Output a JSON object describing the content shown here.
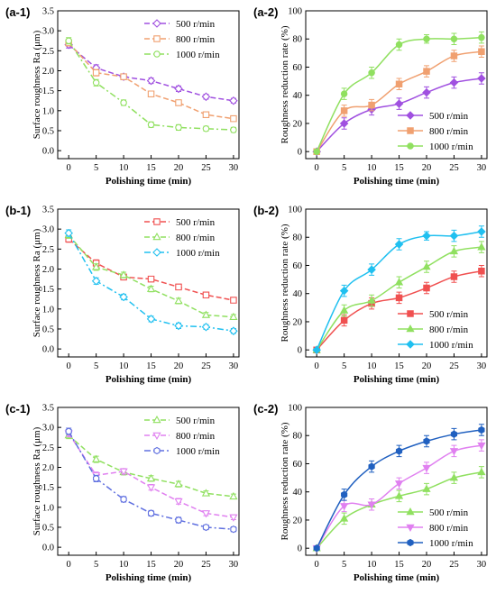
{
  "figure": {
    "chart_data": [
      {
        "panel_label": "(a-1)",
        "type": "line",
        "style": "dashed-line-open-markers",
        "xlabel": "Polishing time (min)",
        "ylabel": "Surface roughness Ra (μm)",
        "xlim": [
          -2,
          31
        ],
        "ylim": [
          -0.2,
          3.5
        ],
        "x_ticks": [
          "0",
          "5",
          "10",
          "15",
          "20",
          "25",
          "30"
        ],
        "y_ticks": [
          "0.0",
          "0.5",
          "1.0",
          "1.5",
          "2.0",
          "2.5",
          "3.0",
          "3.5"
        ],
        "x": [
          0,
          5,
          10,
          15,
          20,
          25,
          30
        ],
        "legend_position": "top-right",
        "series": [
          {
            "name": "500 r/min",
            "color": "#a050e0",
            "marker": "diamond",
            "values": [
              2.65,
              2.07,
              1.85,
              1.75,
              1.55,
              1.35,
              1.25
            ],
            "errors": [
              0.08,
              0.08,
              0.07,
              0.07,
              0.07,
              0.06,
              0.06
            ]
          },
          {
            "name": "800 r/min",
            "color": "#f0a070",
            "marker": "square",
            "values": [
              2.7,
              1.95,
              1.85,
              1.42,
              1.2,
              0.9,
              0.8
            ],
            "errors": [
              0.08,
              0.08,
              0.07,
              0.07,
              0.07,
              0.06,
              0.06
            ]
          },
          {
            "name": "1000 r/min",
            "color": "#90e060",
            "marker": "circle",
            "values": [
              2.75,
              1.7,
              1.2,
              0.65,
              0.58,
              0.55,
              0.52
            ],
            "errors": [
              0.08,
              0.08,
              0.07,
              0.07,
              0.07,
              0.06,
              0.06
            ]
          }
        ]
      },
      {
        "panel_label": "(a-2)",
        "type": "line",
        "style": "smooth-line-filled-markers",
        "xlabel": "Polishing time (min)",
        "ylabel": "Roughness reduction rate (%)",
        "xlim": [
          -2,
          31
        ],
        "ylim": [
          -5,
          100
        ],
        "x_ticks": [
          "0",
          "5",
          "10",
          "15",
          "20",
          "25",
          "30"
        ],
        "y_ticks": [
          "0",
          "20",
          "40",
          "60",
          "80",
          "100"
        ],
        "x": [
          0,
          5,
          10,
          15,
          20,
          25,
          30
        ],
        "legend_position": "bottom-right",
        "series": [
          {
            "name": "500 r/min",
            "color": "#a050e0",
            "marker": "diamond",
            "values": [
              0,
              20,
              30,
              34,
              42,
              49,
              52
            ],
            "errors": [
              1,
              4,
              4,
              4,
              4,
              4,
              4
            ]
          },
          {
            "name": "800 r/min",
            "color": "#f0a070",
            "marker": "square",
            "values": [
              0,
              29,
              33,
              48,
              57,
              68,
              71
            ],
            "errors": [
              1,
              4,
              4,
              4,
              4,
              4,
              4
            ]
          },
          {
            "name": "1000 r/min",
            "color": "#90e060",
            "marker": "circle",
            "values": [
              0,
              41,
              56,
              76,
              80,
              80,
              81
            ],
            "errors": [
              1,
              4,
              4,
              4,
              3,
              4,
              4
            ]
          }
        ]
      },
      {
        "panel_label": "(b-1)",
        "type": "line",
        "style": "dashed-line-open-markers",
        "xlabel": "Polishing time (min)",
        "ylabel": "Surface roughness Ra (μm)",
        "xlim": [
          -2,
          31
        ],
        "ylim": [
          -0.2,
          3.5
        ],
        "x_ticks": [
          "0",
          "5",
          "10",
          "15",
          "20",
          "25",
          "30"
        ],
        "y_ticks": [
          "0.0",
          "0.5",
          "1.0",
          "1.5",
          "2.0",
          "2.5",
          "3.0",
          "3.5"
        ],
        "x": [
          0,
          5,
          10,
          15,
          20,
          25,
          30
        ],
        "legend_position": "top-right",
        "series": [
          {
            "name": "500 r/min",
            "color": "#f05050",
            "marker": "square",
            "values": [
              2.75,
              2.15,
              1.8,
              1.75,
              1.55,
              1.35,
              1.22
            ],
            "errors": [
              0.08,
              0.08,
              0.07,
              0.07,
              0.07,
              0.06,
              0.06
            ]
          },
          {
            "name": "800 r/min",
            "color": "#90e060",
            "marker": "triangle",
            "values": [
              2.85,
              2.05,
              1.85,
              1.5,
              1.2,
              0.85,
              0.8
            ],
            "errors": [
              0.08,
              0.08,
              0.07,
              0.07,
              0.07,
              0.06,
              0.06
            ]
          },
          {
            "name": "1000 r/min",
            "color": "#20c0f0",
            "marker": "diamond",
            "values": [
              2.9,
              1.7,
              1.3,
              0.75,
              0.58,
              0.55,
              0.45
            ],
            "errors": [
              0.08,
              0.08,
              0.07,
              0.07,
              0.07,
              0.06,
              0.06
            ]
          }
        ]
      },
      {
        "panel_label": "(b-2)",
        "type": "line",
        "style": "smooth-line-filled-markers",
        "xlabel": "Polishing time (min)",
        "ylabel": "Roughness reduction rate (%)",
        "xlim": [
          -2,
          31
        ],
        "ylim": [
          -5,
          100
        ],
        "x_ticks": [
          "0",
          "5",
          "10",
          "15",
          "20",
          "25",
          "30"
        ],
        "y_ticks": [
          "0",
          "20",
          "40",
          "60",
          "80",
          "100"
        ],
        "x": [
          0,
          5,
          10,
          15,
          20,
          25,
          30
        ],
        "legend_position": "bottom-right",
        "series": [
          {
            "name": "500 r/min",
            "color": "#f05050",
            "marker": "square",
            "values": [
              0,
              21,
              33,
              37,
              44,
              52,
              56
            ],
            "errors": [
              1,
              4,
              4,
              4,
              4,
              4,
              4
            ]
          },
          {
            "name": "800 r/min",
            "color": "#90e060",
            "marker": "triangle",
            "values": [
              0,
              28,
              35,
              48,
              59,
              70,
              73
            ],
            "errors": [
              1,
              4,
              4,
              4,
              4,
              4,
              4
            ]
          },
          {
            "name": "1000 r/min",
            "color": "#20c0f0",
            "marker": "diamond",
            "values": [
              0,
              42,
              57,
              75,
              81,
              81,
              84
            ],
            "errors": [
              1,
              4,
              4,
              4,
              3,
              4,
              4
            ]
          }
        ]
      },
      {
        "panel_label": "(c-1)",
        "type": "line",
        "style": "dashed-line-open-markers",
        "xlabel": "Polishing time (min)",
        "ylabel": "Surface roughness Ra (μm)",
        "xlim": [
          -2,
          31
        ],
        "ylim": [
          -0.2,
          3.5
        ],
        "x_ticks": [
          "0",
          "5",
          "10",
          "15",
          "20",
          "25",
          "30"
        ],
        "y_ticks": [
          "0.0",
          "0.5",
          "1.0",
          "1.5",
          "2.0",
          "2.5",
          "3.0",
          "3.5"
        ],
        "x": [
          0,
          5,
          10,
          15,
          20,
          25,
          30
        ],
        "legend_position": "top-right",
        "series": [
          {
            "name": "500 r/min",
            "color": "#90e060",
            "marker": "triangle",
            "values": [
              2.8,
              2.2,
              1.88,
              1.72,
              1.58,
              1.35,
              1.27
            ],
            "errors": [
              0.08,
              0.08,
              0.07,
              0.07,
              0.07,
              0.06,
              0.06
            ]
          },
          {
            "name": "800 r/min",
            "color": "#e080f0",
            "marker": "triangle-down",
            "values": [
              2.85,
              1.8,
              1.9,
              1.5,
              1.15,
              0.85,
              0.75
            ],
            "errors": [
              0.08,
              0.08,
              0.07,
              0.07,
              0.07,
              0.06,
              0.06
            ]
          },
          {
            "name": "1000 r/min",
            "color": "#6070e0",
            "marker": "hexagon",
            "values": [
              2.9,
              1.72,
              1.2,
              0.85,
              0.68,
              0.5,
              0.45
            ],
            "errors": [
              0.08,
              0.08,
              0.07,
              0.07,
              0.07,
              0.06,
              0.06
            ]
          }
        ]
      },
      {
        "panel_label": "(c-2)",
        "type": "line",
        "style": "smooth-line-filled-markers",
        "xlabel": "Polishing time (min)",
        "ylabel": "Roughness reduction rate (%)",
        "xlim": [
          -2,
          31
        ],
        "ylim": [
          -5,
          100
        ],
        "x_ticks": [
          "0",
          "5",
          "10",
          "15",
          "20",
          "25",
          "30"
        ],
        "y_ticks": [
          "0",
          "20",
          "40",
          "60",
          "80",
          "100"
        ],
        "x": [
          0,
          5,
          10,
          15,
          20,
          25,
          30
        ],
        "legend_position": "bottom-right",
        "series": [
          {
            "name": "500 r/min",
            "color": "#90e060",
            "marker": "triangle",
            "values": [
              0,
              21,
              31,
              37,
              42,
              50,
              54
            ],
            "errors": [
              1,
              4,
              4,
              4,
              4,
              4,
              4
            ]
          },
          {
            "name": "800 r/min",
            "color": "#e080f0",
            "marker": "triangle-down",
            "values": [
              0,
              30,
              31,
              46,
              57,
              69,
              73
            ],
            "errors": [
              1,
              4,
              4,
              4,
              4,
              4,
              4
            ]
          },
          {
            "name": "1000 r/min",
            "color": "#2060c0",
            "marker": "hexagon",
            "values": [
              0,
              38,
              58,
              69,
              76,
              81,
              84
            ],
            "errors": [
              1,
              4,
              4,
              4,
              4,
              4,
              4
            ]
          }
        ]
      }
    ]
  }
}
